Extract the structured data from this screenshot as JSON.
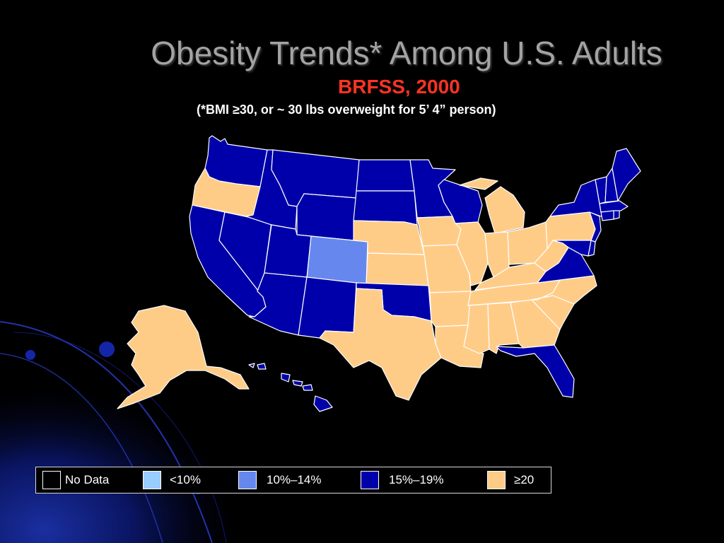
{
  "slide": {
    "title": "Obesity Trends* Among U.S. Adults",
    "subtitle": "BRFSS, 2000",
    "footnote": "(*BMI ≥30, or ~ 30 lbs overweight for 5’ 4” person)"
  },
  "colors": {
    "no_data": "#000000",
    "lt10": "#99ccff",
    "c10_14": "#6688ee",
    "c15_19": "#0000aa",
    "ge20": "#ffcc88"
  },
  "legend": [
    {
      "label": "No Data",
      "color": "#000000"
    },
    {
      "label": "<10%",
      "color": "#99ccff"
    },
    {
      "label": "10%–14%",
      "color": "#6688ee"
    },
    {
      "label": "15%–19%",
      "color": "#0000aa"
    },
    {
      "label": "≥20",
      "color": "#ffcc88"
    }
  ],
  "states": {
    "WA": "15-19",
    "OR": "20+",
    "CA": "15-19",
    "NV": "15-19",
    "ID": "15-19",
    "MT": "15-19",
    "WY": "15-19",
    "UT": "15-19",
    "CO": "10-14",
    "AZ": "15-19",
    "NM": "15-19",
    "ND": "15-19",
    "SD": "15-19",
    "NE": "20+",
    "KS": "20+",
    "OK": "15-19",
    "TX": "20+",
    "MN": "15-19",
    "IA": "20+",
    "MO": "20+",
    "AR": "20+",
    "LA": "20+",
    "WI": "15-19",
    "IL": "20+",
    "MI": "20+",
    "IN": "20+",
    "OH": "20+",
    "KY": "20+",
    "TN": "20+",
    "MS": "20+",
    "AL": "20+",
    "GA": "20+",
    "FL": "15-19",
    "SC": "20+",
    "NC": "20+",
    "VA": "15-19",
    "WV": "20+",
    "PA": "20+",
    "NY": "15-19",
    "NJ": "15-19",
    "DE": "15-19",
    "MD": "15-19",
    "CT": "15-19",
    "RI": "15-19",
    "MA": "15-19",
    "VT": "15-19",
    "NH": "15-19",
    "ME": "15-19",
    "AK": "20+",
    "HI": "15-19"
  }
}
